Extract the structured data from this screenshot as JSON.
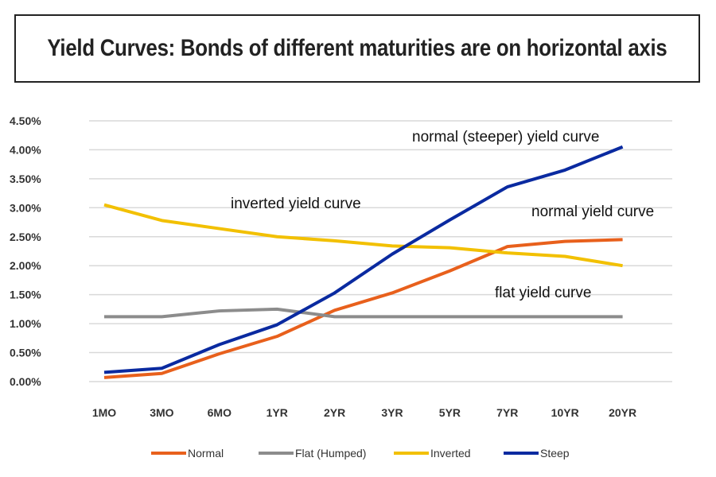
{
  "chart_data": {
    "type": "line",
    "title": "Yield Curves: Bonds of different maturities are on horizontal axis",
    "xlabel": "",
    "ylabel": "",
    "categories": [
      "1MO",
      "3MO",
      "6MO",
      "1YR",
      "2YR",
      "3YR",
      "5YR",
      "7YR",
      "10YR",
      "20YR"
    ],
    "yticks": [
      "0.00%",
      "0.50%",
      "1.00%",
      "1.50%",
      "2.00%",
      "2.50%",
      "3.00%",
      "3.50%",
      "4.00%",
      "4.50%"
    ],
    "ylim": [
      0,
      4.5
    ],
    "grid": true,
    "legend_position": "bottom",
    "series": [
      {
        "name": "Normal",
        "color": "#e8601c",
        "values": [
          0.07,
          0.14,
          0.48,
          0.78,
          1.23,
          1.53,
          1.91,
          2.33,
          2.42,
          2.45
        ]
      },
      {
        "name": "Flat (Humped)",
        "color": "#8c8c8c",
        "values": [
          1.12,
          1.12,
          1.22,
          1.25,
          1.12,
          1.12,
          1.12,
          1.12,
          1.12,
          1.12
        ]
      },
      {
        "name": "Inverted",
        "color": "#f2c000",
        "values": [
          3.05,
          2.78,
          2.64,
          2.5,
          2.43,
          2.34,
          2.31,
          2.22,
          2.16,
          2.0
        ]
      },
      {
        "name": "Steep",
        "color": "#0a2aa0",
        "values": [
          0.16,
          0.23,
          0.64,
          0.98,
          1.53,
          2.2,
          2.79,
          3.36,
          3.65,
          4.05
        ]
      }
    ],
    "annotations": [
      "normal (steeper) yield curve",
      "inverted yield curve",
      "normal yield curve",
      "flat yield curve"
    ]
  }
}
